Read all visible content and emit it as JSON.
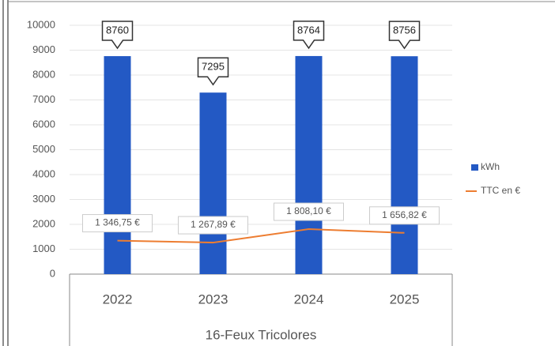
{
  "chart_data": {
    "type": "bar",
    "x_label": "16-Feux Tricolores",
    "categories": [
      "2022",
      "2023",
      "2024",
      "2025"
    ],
    "series": [
      {
        "name": "kWh",
        "type": "bar",
        "color": "#2359c4",
        "values": [
          8760,
          7295,
          8764,
          8756
        ]
      },
      {
        "name": "TTC en €",
        "type": "line",
        "color": "#ed7d31",
        "values": [
          1346.75,
          1267.89,
          1808.1,
          1656.82
        ],
        "value_labels": [
          "1 346,75 €",
          "1 267,89 €",
          "1 808,10 €",
          "1 656,82 €"
        ]
      }
    ],
    "ylim": [
      0,
      10000
    ],
    "yticks": [
      0,
      1000,
      2000,
      3000,
      4000,
      5000,
      6000,
      7000,
      8000,
      9000,
      10000
    ],
    "grid": true,
    "legend": "right"
  }
}
